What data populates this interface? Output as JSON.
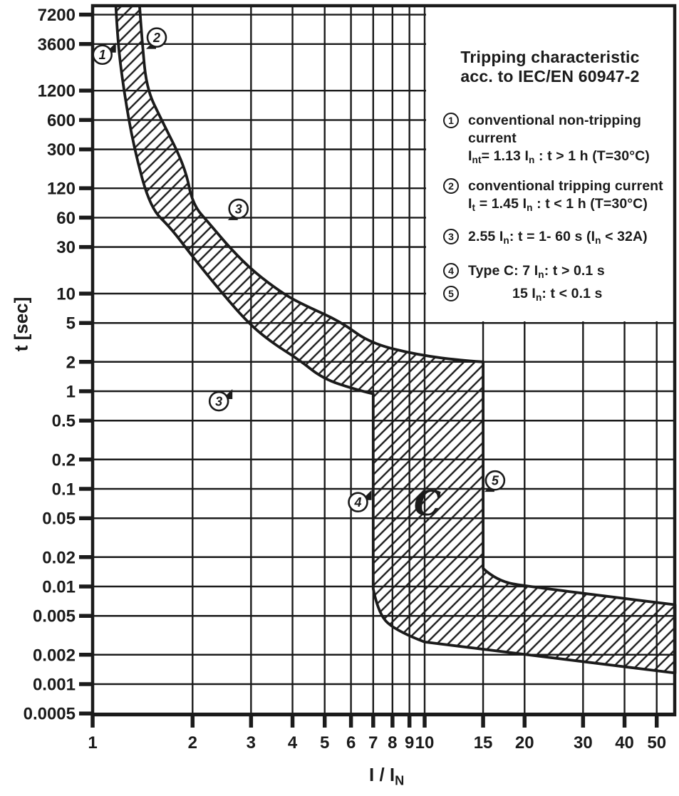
{
  "colors": {
    "ink": "#1b1b1b",
    "background": "#ffffff"
  },
  "legend": {
    "title": "Tripping characteristic",
    "subtitle": "acc. to IEC/EN 60947-2",
    "items": [
      {
        "num": "1",
        "indent": false,
        "lines": [
          [
            {
              "t": "conventional non-tripping current"
            }
          ],
          [
            {
              "t": "I"
            },
            {
              "t": "nt",
              "sub": true
            },
            {
              "t": "= 1.13 "
            },
            {
              "t": "I"
            },
            {
              "t": "n",
              "sub": true
            },
            {
              "t": " : t > 1 h   (T=30°C)"
            }
          ]
        ]
      },
      {
        "num": "2",
        "indent": false,
        "lines": [
          [
            {
              "t": "conventional tripping current"
            }
          ],
          [
            {
              "t": "I"
            },
            {
              "t": "t",
              "sub": true
            },
            {
              "t": " = 1.45 "
            },
            {
              "t": "I"
            },
            {
              "t": "n",
              "sub": true
            },
            {
              "t": " : t < 1 h   (T=30°C)"
            }
          ]
        ]
      },
      {
        "num": "3",
        "indent": false,
        "lines": [
          [
            {
              "t": "2.55 "
            },
            {
              "t": "I"
            },
            {
              "t": "n",
              "sub": true
            },
            {
              "t": ": t = 1- 60 s ("
            },
            {
              "t": "I"
            },
            {
              "t": "n",
              "sub": true
            },
            {
              "t": " < 32A)"
            }
          ]
        ]
      },
      {
        "num": "4",
        "indent": false,
        "lines": [
          [
            {
              "t": "Type C:  7 "
            },
            {
              "t": "I"
            },
            {
              "t": "n",
              "sub": true
            },
            {
              "t": ": t > 0.1 s"
            }
          ]
        ]
      },
      {
        "num": "5",
        "indent": true,
        "lines": [
          [
            {
              "t": "15 "
            },
            {
              "t": "I"
            },
            {
              "t": "n",
              "sub": true
            },
            {
              "t": ": t < 0.1 s"
            }
          ]
        ]
      }
    ]
  },
  "chart_data": {
    "type": "area",
    "title": "Tripping characteristic acc. to IEC/EN 60947-2",
    "ylabel": "t [sec]",
    "xlabel_main": "I / I",
    "xlabel_sub": "N",
    "x_scale": "log",
    "y_scale": "log",
    "grid": true,
    "legend_position": "top-right",
    "x_ticks": [
      "1",
      "2",
      "3",
      "4",
      "5",
      "6",
      "7",
      "8",
      "9",
      "10",
      "15",
      "20",
      "30",
      "40",
      "50"
    ],
    "y_ticks": [
      "7200",
      "3600",
      "1200",
      "600",
      "300",
      "120",
      "60",
      "30",
      "10",
      "5",
      "2",
      "1",
      "0.5",
      "0.2",
      "0.1",
      "0.05",
      "0.02",
      "0.01",
      "0.005",
      "0.002",
      "0.001",
      "0.0005"
    ],
    "xlim": [
      1,
      56.8
    ],
    "ylim": [
      0.00045,
      8900
    ],
    "band": {
      "description": "tolerance band of tripping time vs multiple of rated current, hatched",
      "upper": [
        [
          1.385,
          8900
        ],
        [
          1.41,
          3760
        ],
        [
          1.455,
          1244
        ],
        [
          1.615,
          597
        ],
        [
          1.9,
          197
        ],
        [
          2.0,
          82
        ],
        [
          2.26,
          51
        ],
        [
          2.6,
          29
        ],
        [
          3.04,
          17
        ],
        [
          3.74,
          10
        ],
        [
          4.34,
          7.6
        ],
        [
          5.57,
          5.2
        ],
        [
          6.86,
          3.1
        ],
        [
          9.55,
          2.35
        ],
        [
          13.2,
          2.05
        ],
        [
          15,
          2.0
        ]
      ],
      "upper_drop": [
        [
          15,
          0.0153
        ],
        [
          16.5,
          0.0114
        ],
        [
          20.7,
          0.0099
        ],
        [
          56.8,
          0.0065
        ]
      ],
      "lower": [
        [
          1.175,
          8900
        ],
        [
          1.19,
          3760
        ],
        [
          1.24,
          1244
        ],
        [
          1.33,
          316
        ],
        [
          1.49,
          76
        ],
        [
          1.72,
          47
        ],
        [
          1.98,
          25
        ],
        [
          2.46,
          10
        ],
        [
          2.96,
          4.9
        ],
        [
          3.49,
          3.1
        ],
        [
          4.19,
          2.1
        ],
        [
          4.93,
          1.35
        ],
        [
          6.13,
          1.05
        ],
        [
          7.0,
          0.94
        ]
      ],
      "lower_drop": [
        [
          7.0,
          0.0095
        ],
        [
          7.22,
          0.0056
        ],
        [
          8.03,
          0.0036
        ],
        [
          10.0,
          0.0027
        ],
        [
          56.8,
          0.0013
        ]
      ]
    },
    "annotations": [
      {
        "n": "1",
        "x": 1.07,
        "t": 2800,
        "dir": "ne"
      },
      {
        "n": "2",
        "x": 1.56,
        "t": 4200,
        "dir": "sw"
      },
      {
        "n": "3",
        "x": 2.75,
        "t": 74,
        "dir": "sw"
      },
      {
        "n": "3",
        "x": 2.4,
        "t": 0.79,
        "dir": "ne"
      },
      {
        "n": "4",
        "x": 6.3,
        "t": 0.073,
        "dir": "ne"
      },
      {
        "n": "5",
        "x": 16.3,
        "t": 0.122,
        "dir": "sw"
      }
    ],
    "region_label": {
      "text": "C",
      "x": 10.2,
      "t": 0.07
    }
  }
}
